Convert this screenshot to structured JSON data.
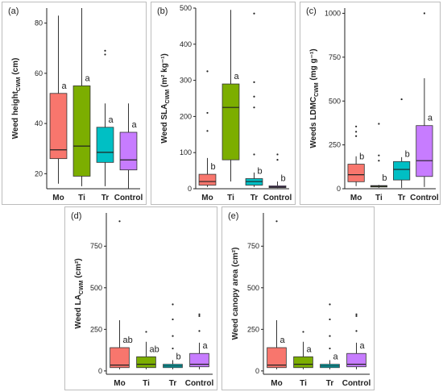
{
  "colors": {
    "Mo": "#f8766d",
    "Ti": "#7cae00",
    "Tr": "#00bfc4",
    "Control": "#c77cff",
    "axis": "#222222",
    "median": "#222222"
  },
  "chart_data": [
    {
      "panel_label": "(a)",
      "type": "box",
      "ylabel": "Weed height",
      "ylabel_sub": "CWM",
      "ylabel_unit": " (cm)",
      "ylim": [
        14,
        86
      ],
      "yticks": [
        "20",
        "40",
        "60",
        "80"
      ],
      "categories": [
        "Mo",
        "Ti",
        "Tr",
        "Control"
      ],
      "boxes": [
        {
          "cat": "Mo",
          "whisker_low": 16,
          "q1": 26,
          "median": 29.5,
          "q3": 52,
          "whisker_high": 83,
          "outliers": [],
          "letter": "a"
        },
        {
          "cat": "Ti",
          "whisker_low": 15,
          "q1": 19,
          "median": 31,
          "q3": 55,
          "whisker_high": 86,
          "outliers": [],
          "letter": "a"
        },
        {
          "cat": "Tr",
          "whisker_low": 15,
          "q1": 24.5,
          "median": 28.5,
          "q3": 38.5,
          "whisker_high": 48,
          "outliers": [
            67.5,
            69
          ],
          "letter": "a"
        },
        {
          "cat": "Control",
          "whisker_low": 14,
          "q1": 21.5,
          "median": 25.5,
          "q3": 36.5,
          "whisker_high": 48,
          "outliers": [],
          "letter": "a"
        }
      ]
    },
    {
      "panel_label": "(b)",
      "type": "box",
      "ylabel": "Weed SLA",
      "ylabel_sub": "CWM",
      "ylabel_unit": " (m² kg⁻¹)",
      "ylim": [
        0,
        500
      ],
      "yticks": [
        "0",
        "100",
        "200",
        "300",
        "400",
        "500"
      ],
      "categories": [
        "Mo",
        "Ti",
        "Tr",
        "Control"
      ],
      "boxes": [
        {
          "cat": "Mo",
          "whisker_low": 5,
          "q1": 10,
          "median": 20,
          "q3": 40,
          "whisker_high": 85,
          "outliers": [
            160,
            210,
            325
          ],
          "letter": "b"
        },
        {
          "cat": "Ti",
          "whisker_low": 20,
          "q1": 80,
          "median": 225,
          "q3": 290,
          "whisker_high": 495,
          "outliers": [],
          "letter": "a"
        },
        {
          "cat": "Tr",
          "whisker_low": 5,
          "q1": 10,
          "median": 20,
          "q3": 28,
          "whisker_high": 45,
          "outliers": [
            95,
            225,
            255,
            295,
            485
          ],
          "letter": "b"
        },
        {
          "cat": "Control",
          "whisker_low": 2,
          "q1": 3,
          "median": 5,
          "q3": 8,
          "whisker_high": 20,
          "outliers": [
            80,
            95
          ],
          "letter": "b"
        }
      ]
    },
    {
      "panel_label": "(c)",
      "type": "box",
      "ylabel": "Weeds LDMC",
      "ylabel_sub": "CWM",
      "ylabel_unit": " (mg g⁻¹)",
      "ylim": [
        0,
        1030
      ],
      "yticks": [
        "0",
        "250",
        "500",
        "750",
        "1000"
      ],
      "categories": [
        "Mo",
        "Ti",
        "Tr",
        "Control"
      ],
      "boxes": [
        {
          "cat": "Mo",
          "whisker_low": 15,
          "q1": 40,
          "median": 80,
          "q3": 140,
          "whisker_high": 185,
          "outliers": [
            300,
            325,
            355
          ],
          "letter": "b"
        },
        {
          "cat": "Ti",
          "whisker_low": 5,
          "q1": 10,
          "median": 15,
          "q3": 18,
          "whisker_high": 22,
          "outliers": [
            160,
            190,
            370
          ],
          "letter": "b"
        },
        {
          "cat": "Tr",
          "whisker_low": 5,
          "q1": 50,
          "median": 110,
          "q3": 155,
          "whisker_high": 180,
          "outliers": [
            510
          ],
          "letter": "b"
        },
        {
          "cat": "Control",
          "whisker_low": 10,
          "q1": 70,
          "median": 160,
          "q3": 360,
          "whisker_high": 630,
          "outliers": [
            1000
          ],
          "letter": "a"
        }
      ]
    },
    {
      "panel_label": "(d)",
      "type": "box",
      "ylabel": "Weed LA",
      "ylabel_sub": "CWM",
      "ylabel_unit": " (cm²)",
      "ylim": [
        -20,
        950
      ],
      "yticks": [
        "0",
        "250",
        "500",
        "750"
      ],
      "categories": [
        "Mo",
        "Ti",
        "Tr",
        "Control"
      ],
      "boxes": [
        {
          "cat": "Mo",
          "whisker_low": 10,
          "q1": 20,
          "median": 35,
          "q3": 140,
          "whisker_high": 305,
          "outliers": [
            900
          ],
          "letter": "ab"
        },
        {
          "cat": "Ti",
          "whisker_low": 10,
          "q1": 20,
          "median": 40,
          "q3": 85,
          "whisker_high": 175,
          "outliers": [
            235
          ],
          "letter": "ab"
        },
        {
          "cat": "Tr",
          "whisker_low": 10,
          "q1": 20,
          "median": 30,
          "q3": 40,
          "whisker_high": 65,
          "outliers": [
            135,
            210,
            310,
            400
          ],
          "letter": "b"
        },
        {
          "cat": "Control",
          "whisker_low": 10,
          "q1": 25,
          "median": 40,
          "q3": 105,
          "whisker_high": 170,
          "outliers": [
            240,
            330,
            340
          ],
          "letter": "a"
        }
      ]
    },
    {
      "panel_label": "(e)",
      "type": "box",
      "ylabel": "Weed canopy area (cm²)",
      "ylabel_sub": "",
      "ylabel_unit": "",
      "ylim": [
        -20,
        950
      ],
      "yticks": [
        "0",
        "250",
        "500",
        "750"
      ],
      "categories": [
        "Mo",
        "Ti",
        "Tr",
        "Control"
      ],
      "boxes": [
        {
          "cat": "Mo",
          "whisker_low": 10,
          "q1": 20,
          "median": 35,
          "q3": 140,
          "whisker_high": 305,
          "outliers": [
            900
          ],
          "letter": "a"
        },
        {
          "cat": "Ti",
          "whisker_low": 10,
          "q1": 20,
          "median": 40,
          "q3": 85,
          "whisker_high": 175,
          "outliers": [
            235
          ],
          "letter": "a"
        },
        {
          "cat": "Tr",
          "whisker_low": 10,
          "q1": 20,
          "median": 30,
          "q3": 40,
          "whisker_high": 65,
          "outliers": [
            135,
            210,
            310,
            400
          ],
          "letter": "a"
        },
        {
          "cat": "Control",
          "whisker_low": 10,
          "q1": 25,
          "median": 40,
          "q3": 105,
          "whisker_high": 170,
          "outliers": [
            240,
            330,
            340
          ],
          "letter": "a"
        }
      ]
    }
  ]
}
